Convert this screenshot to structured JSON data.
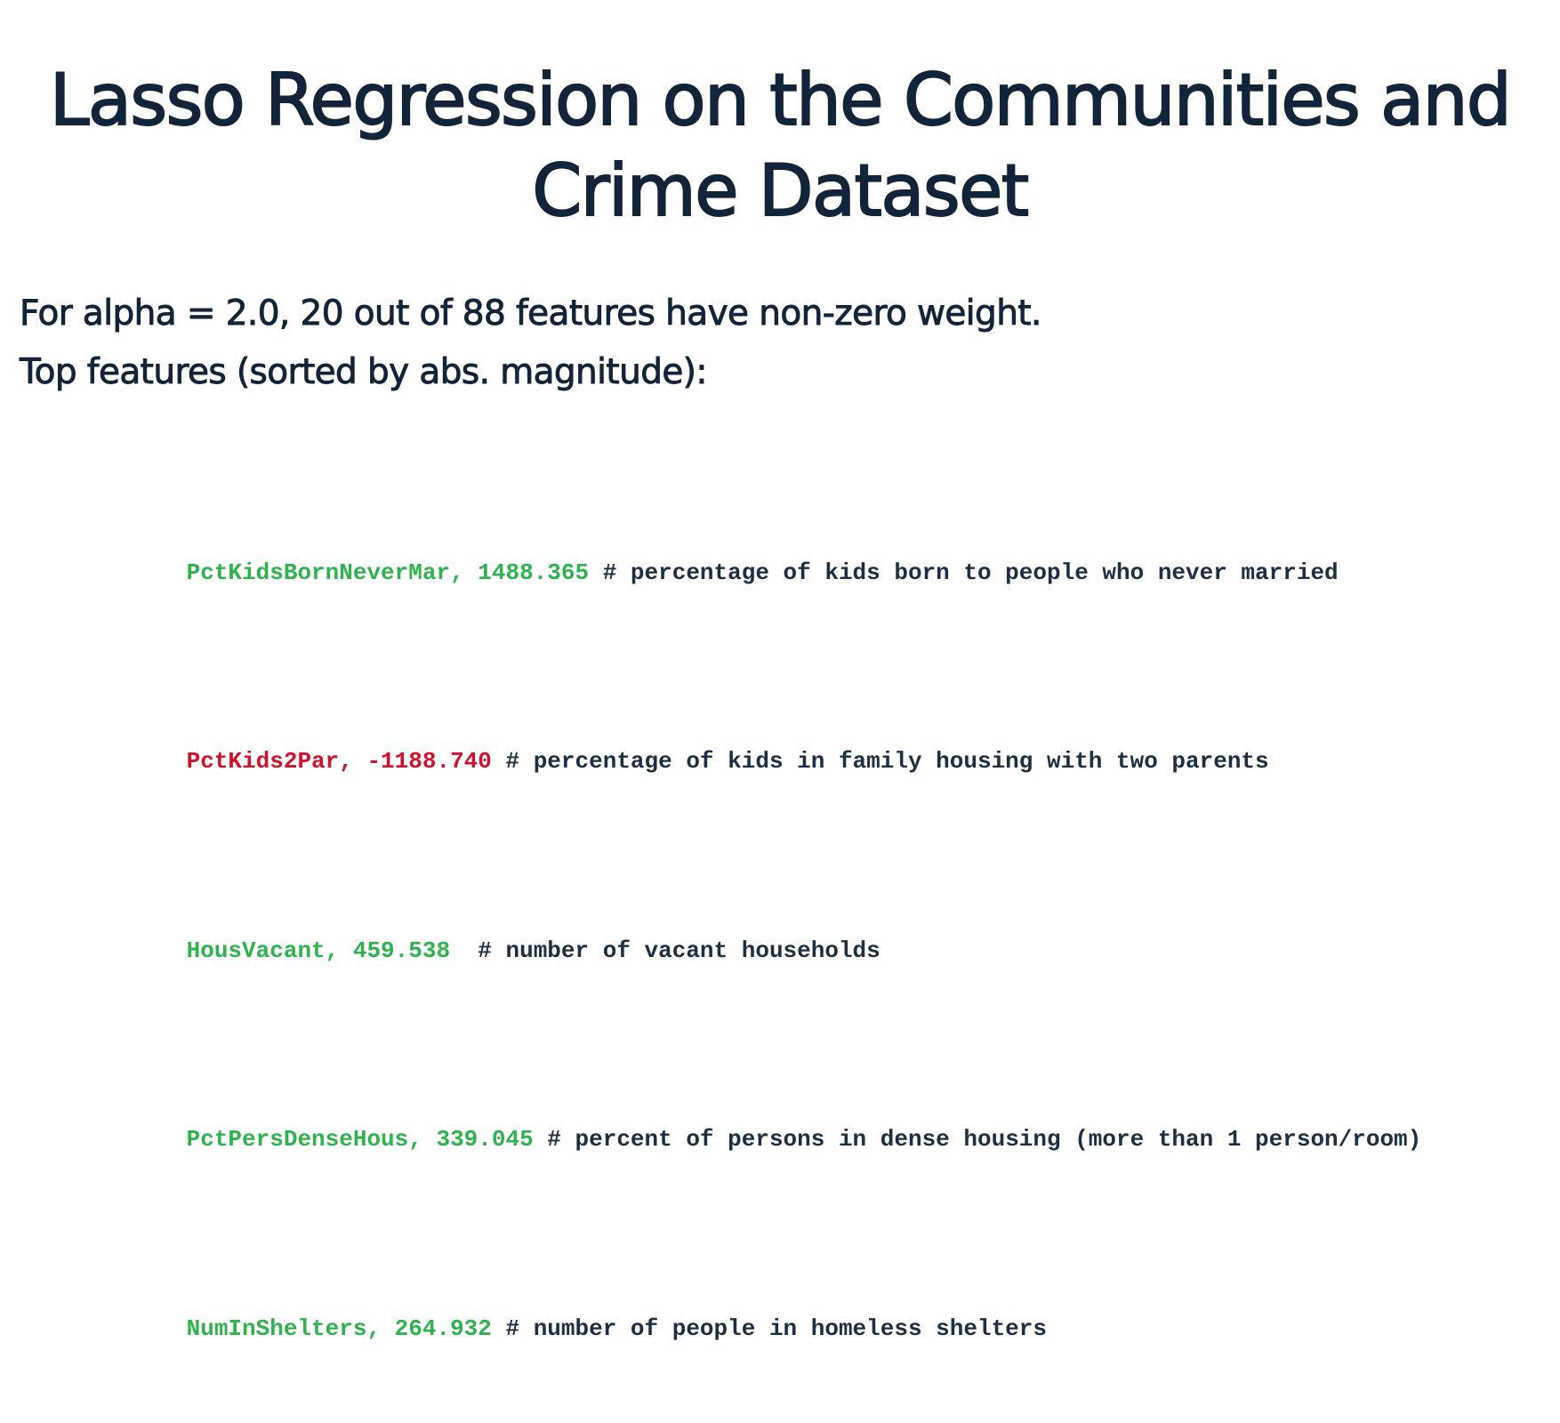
{
  "slide": {
    "title_lines": [
      "Lasso Regression on the Communities and",
      "Crime Dataset"
    ],
    "summary_lines": [
      "For alpha = 2.0,  20 out of 88 features have non-zero weight.",
      "Top features (sorted by abs. magnitude):"
    ],
    "features": [
      {
        "code": "PctKidsBornNeverMar, 1488.365",
        "comment": " # percentage of kids born to people who never married",
        "sign": "positive"
      },
      {
        "code": "PctKids2Par, -1188.740",
        "comment": " # percentage of kids in family housing with two parents",
        "sign": "negative"
      },
      {
        "code": "HousVacant, 459.538 ",
        "comment": " # number of vacant households",
        "sign": "positive"
      },
      {
        "code": "PctPersDenseHous, 339.045",
        "comment": " # percent of persons in dense housing (more than 1 person/room)",
        "sign": "positive"
      },
      {
        "code": "NumInShelters, 264.932",
        "comment": " # number of people in homeless shelters",
        "sign": "positive"
      }
    ],
    "colors": {
      "title_text": "#11243a",
      "positive_feature": "#2fb34c",
      "negative_feature": "#d0132a",
      "comment_text": "#1b2f45"
    }
  }
}
